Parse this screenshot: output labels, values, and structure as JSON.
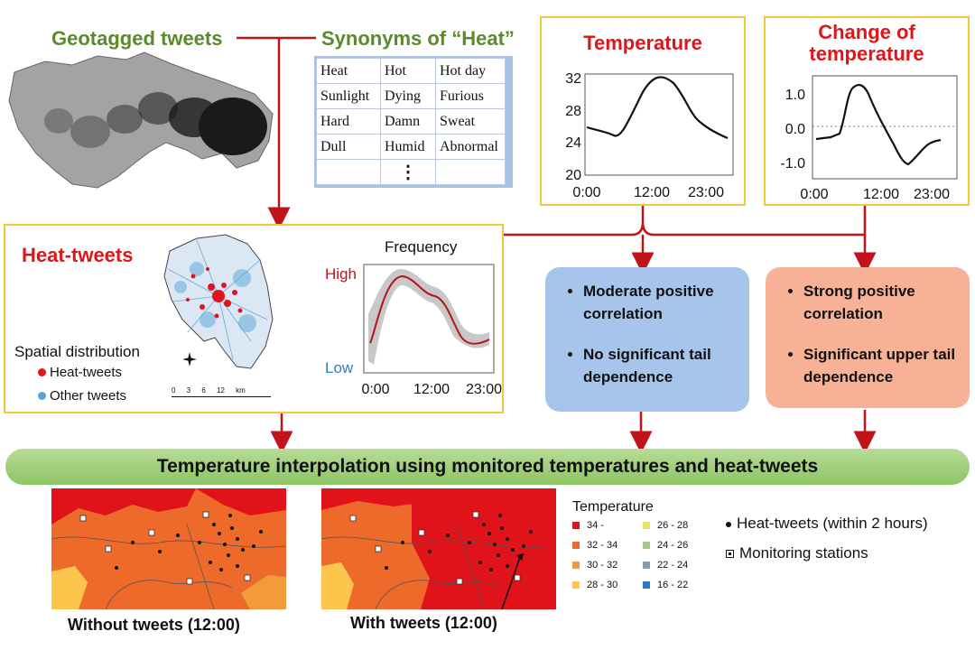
{
  "top": {
    "geotagged_title": "Geotagged tweets",
    "synonyms_title": "Synonyms of “Heat”",
    "synonyms": [
      [
        "Heat",
        "Hot",
        "Hot day"
      ],
      [
        "Sunlight",
        "Dying",
        "Furious"
      ],
      [
        "Hard",
        "Damn",
        "Sweat"
      ],
      [
        "Dull",
        "Humid",
        "Abnormal"
      ]
    ],
    "synonyms_more": "⋮",
    "temperature_title": "Temperature",
    "change_title": "Change of temperature"
  },
  "temp_chart": {
    "y_ticks": [
      "32",
      "28",
      "24",
      "20"
    ],
    "x_ticks": [
      "0:00",
      "12:00",
      "23:00"
    ]
  },
  "change_chart": {
    "y_ticks": [
      "1.0",
      "0.0",
      "-1.0"
    ],
    "x_ticks": [
      "0:00",
      "12:00",
      "23:00"
    ]
  },
  "heat_panel": {
    "title": "Heat-tweets",
    "spatial_label": "Spatial distribution",
    "legend_heat": "Heat-tweets",
    "legend_other": "Other tweets",
    "scale_text": "0 3 6 12 km",
    "freq_title": "Frequency",
    "freq_high": "High",
    "freq_low": "Low",
    "freq_x_ticks": [
      "0:00",
      "12:00",
      "23:00"
    ]
  },
  "boxes": {
    "blue_items": [
      "Moderate positive correlation",
      "No significant tail dependence"
    ],
    "orange_items": [
      "Strong positive correlation",
      "Significant upper tail dependence"
    ]
  },
  "interp_title": "Temperature interpolation using monitored temperatures and heat-tweets",
  "bottom": {
    "caption_without": "Without tweets (12:00)",
    "caption_with": "With tweets (12:00)",
    "legend_title": "Temperature",
    "legend_items_left": [
      {
        "label": "34 -",
        "color": "#e0121a"
      },
      {
        "label": "32 - 34",
        "color": "#ee6a2b"
      },
      {
        "label": "30 - 32",
        "color": "#f39a3a"
      },
      {
        "label": "28 - 30",
        "color": "#fbc64b"
      }
    ],
    "legend_items_right": [
      {
        "label": "26 - 28",
        "color": "#e6e26a"
      },
      {
        "label": "24 - 26",
        "color": "#a3c98e"
      },
      {
        "label": "22 - 24",
        "color": "#7e9fb5"
      },
      {
        "label": "16 - 22",
        "color": "#2f79c2"
      }
    ],
    "heat_tweets_label": "Heat-tweets (within 2 hours)",
    "stations_label": "Monitoring stations"
  },
  "colors": {
    "arrow": "#c0141a",
    "panel_border": "#f3c93b",
    "blue_box": "#a7c5ea",
    "orange_box": "#f7b197",
    "heat_red": "#e0141a",
    "other_blue": "#5aa3d8"
  }
}
